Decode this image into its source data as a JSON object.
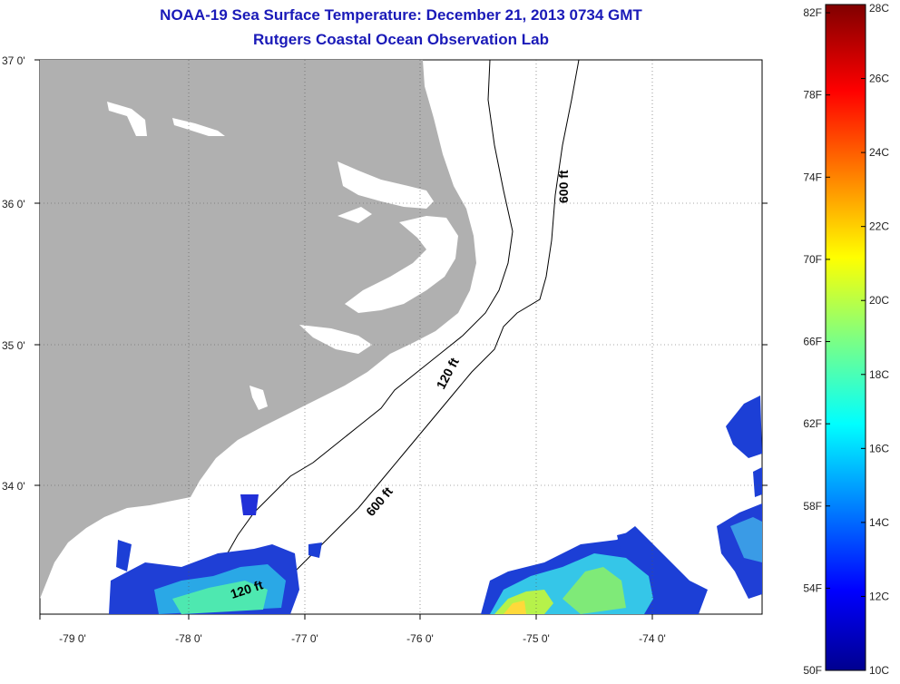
{
  "header": {
    "title": "NOAA-19 Sea Surface Temperature:  December 21, 2013 0734 GMT",
    "subtitle": "Rutgers Coastal Ocean Observation Lab"
  },
  "map": {
    "lat_labels": [
      "37 0'",
      "36 0'",
      "35 0'",
      "34 0'"
    ],
    "lon_labels": [
      "-79 0'",
      "-78 0'",
      "-77 0'",
      "-76 0'",
      "-75 0'",
      "-74 0'"
    ],
    "contours": {
      "top_600": "600 ft",
      "mid_120": "120 ft",
      "mid_600": "600 ft",
      "bottom_120": "120 ft"
    },
    "colors": {
      "land": "#b0b0b0",
      "water": "#ffffff",
      "contour": "#000000"
    }
  },
  "colorbar": {
    "fahrenheit_labels": [
      "82F",
      "78F",
      "74F",
      "70F",
      "66F",
      "62F",
      "58F",
      "54F",
      "50F"
    ],
    "celsius_labels": [
      "28C",
      "26C",
      "24C",
      "22C",
      "20C",
      "18C",
      "16C",
      "14C",
      "12C",
      "10C"
    ],
    "scale_min_c": 10,
    "scale_max_c": 28,
    "colormap": "jet"
  }
}
